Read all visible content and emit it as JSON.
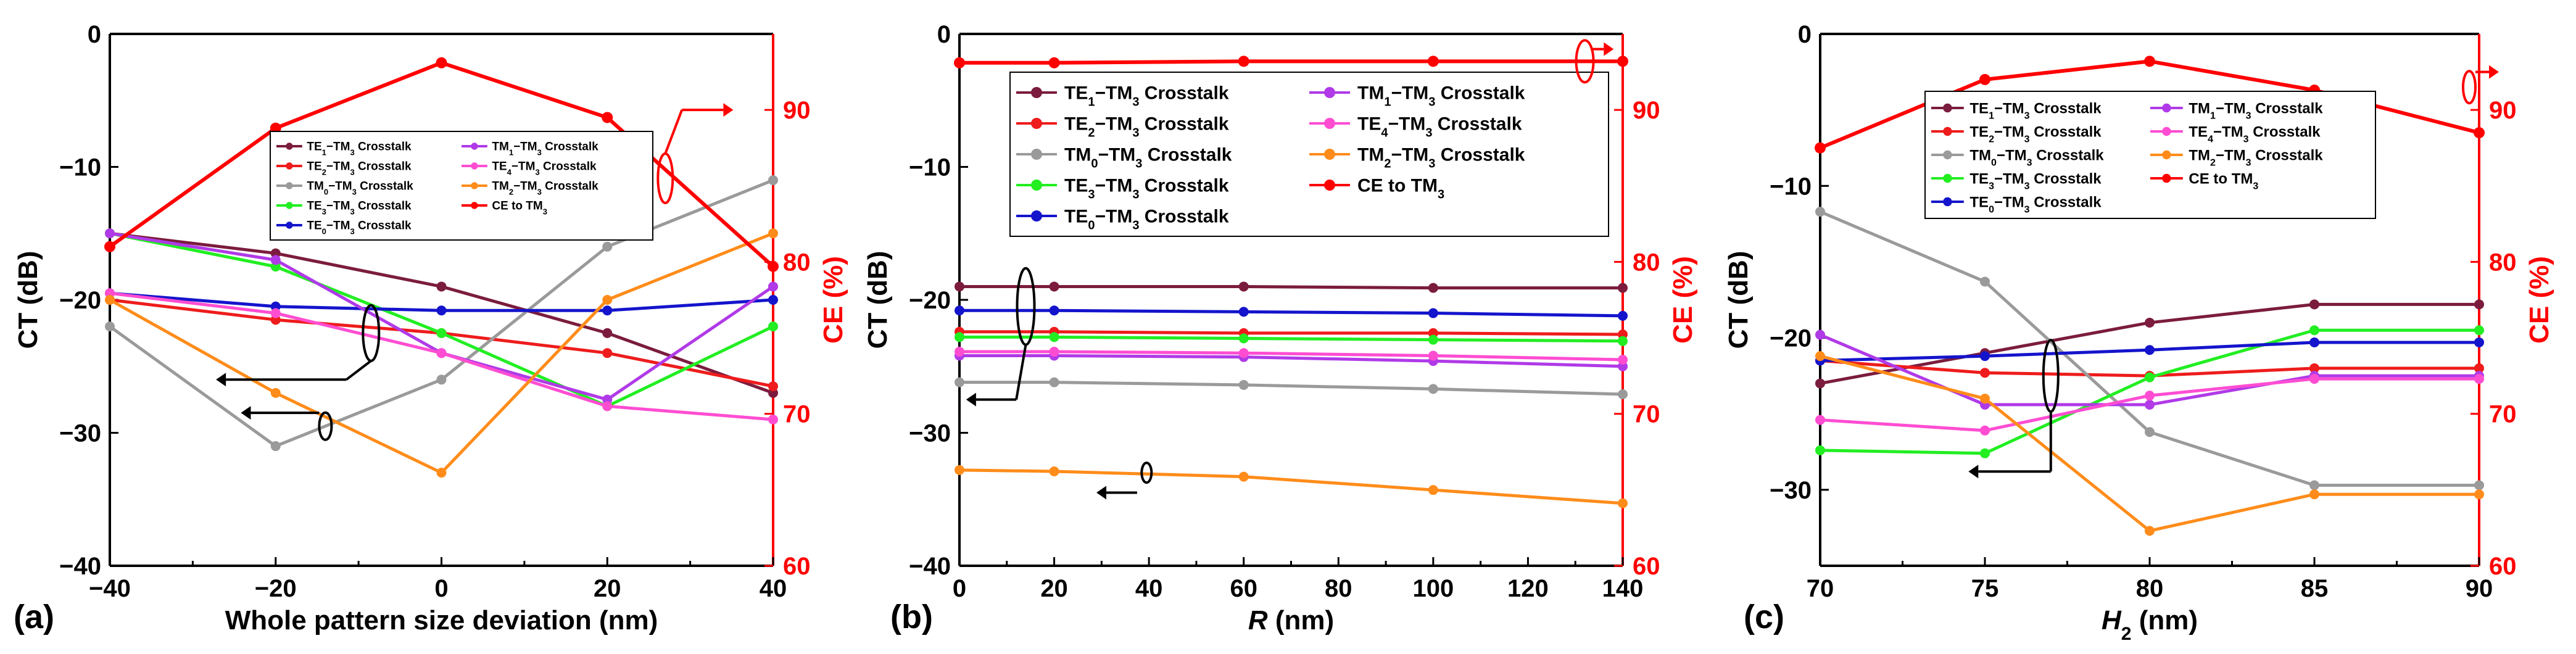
{
  "colors": {
    "TE1": "#7b1c3e",
    "TE2": "#ee1c1c",
    "TM0": "#9a9a9a",
    "TE3": "#22ee22",
    "TE0": "#1414cc",
    "TM1": "#b03ae8",
    "TE4": "#ff4dd2",
    "TM2": "#ff8c1a",
    "CE": "#ff0000"
  },
  "legend_labels": {
    "TE1": [
      "TE",
      "1",
      "−TM",
      "3",
      " Crosstalk"
    ],
    "TE2": [
      "TE",
      "2",
      "−TM",
      "3",
      " Crosstalk"
    ],
    "TM0": [
      "TM",
      "0",
      "−TM",
      "3",
      " Crosstalk"
    ],
    "TE3": [
      "TE",
      "3",
      "−TM",
      "3",
      " Crosstalk"
    ],
    "TE0": [
      "TE",
      "0",
      "−TM",
      "3",
      " Crosstalk"
    ],
    "TM1": [
      "TM",
      "1",
      "−TM",
      "3",
      " Crosstalk"
    ],
    "TE4": [
      "TE",
      "4",
      "−TM",
      "3",
      " Crosstalk"
    ],
    "TM2": [
      "TM",
      "2",
      "−TM",
      "3",
      " Crosstalk"
    ],
    "CE": [
      "CE to TM",
      "3",
      "",
      "",
      ""
    ]
  },
  "chart_data": [
    {
      "type": "line",
      "panel_label": "(a)",
      "xlabel": "Whole pattern size deviation (nm)",
      "x_italic": false,
      "ylabel": "CT (dB)",
      "y2label": "CE (%)",
      "xlim": [
        -40,
        40
      ],
      "xticks": [
        -40,
        -20,
        0,
        20,
        40
      ],
      "ylim": [
        -40,
        0
      ],
      "yticks": [
        -40,
        -30,
        -20,
        -10,
        0
      ],
      "y2lim": [
        60,
        95
      ],
      "y2ticks": [
        60,
        70,
        80,
        90
      ],
      "x": [
        -40,
        -20,
        0,
        20,
        40
      ],
      "series": [
        {
          "key": "TE1",
          "name": "TE1−TM3 Crosstalk",
          "axis": "left",
          "values": [
            -15,
            -16.5,
            -19,
            -22.5,
            -27
          ]
        },
        {
          "key": "TE2",
          "name": "TE2−TM3 Crosstalk",
          "axis": "left",
          "values": [
            -20,
            -21.5,
            -22.5,
            -24,
            -26.5
          ]
        },
        {
          "key": "TM0",
          "name": "TM0−TM3 Crosstalk",
          "axis": "left",
          "values": [
            -22,
            -31,
            -26,
            -16,
            -11
          ]
        },
        {
          "key": "TE3",
          "name": "TE3−TM3 Crosstalk",
          "axis": "left",
          "values": [
            -15,
            -17.5,
            -22.5,
            -28,
            -22
          ]
        },
        {
          "key": "TE0",
          "name": "TE0−TM3 Crosstalk",
          "axis": "left",
          "values": [
            -19.5,
            -20.5,
            -20.8,
            -20.8,
            -20
          ]
        },
        {
          "key": "TM1",
          "name": "TM1−TM3 Crosstalk",
          "axis": "left",
          "values": [
            -15,
            -17,
            -24,
            -27.5,
            -19
          ]
        },
        {
          "key": "TE4",
          "name": "TE4−TM3 Crosstalk",
          "axis": "left",
          "values": [
            -19.5,
            -21,
            -24,
            -28,
            -29
          ]
        },
        {
          "key": "TM2",
          "name": "TM2−TM3 Crosstalk",
          "axis": "left",
          "values": [
            -20,
            -27,
            -33,
            -20,
            -15
          ]
        },
        {
          "key": "CE",
          "name": "CE to TM3",
          "axis": "right",
          "values": [
            81,
            88.8,
            93.1,
            89.5,
            79.7
          ]
        }
      ],
      "legend": {
        "font": 19,
        "line_h": 32,
        "order": [
          [
            "TE1",
            "TM1"
          ],
          [
            "TE2",
            "TE4"
          ],
          [
            "TM0",
            "TM2"
          ],
          [
            "TE3",
            "CE"
          ],
          [
            "TE0",
            null
          ]
        ]
      }
    },
    {
      "type": "line",
      "panel_label": "(b)",
      "xlabel": "R (nm)",
      "x_italic": true,
      "ylabel": "CT (dB)",
      "y2label": "CE (%)",
      "xlim": [
        0,
        140
      ],
      "xticks": [
        0,
        20,
        40,
        60,
        80,
        100,
        120,
        140
      ],
      "ylim": [
        -40,
        0
      ],
      "yticks": [
        -40,
        -30,
        -20,
        -10,
        0
      ],
      "y2lim": [
        60,
        95
      ],
      "y2ticks": [
        60,
        70,
        80,
        90
      ],
      "x": [
        0,
        20,
        60,
        100,
        140
      ],
      "series": [
        {
          "key": "TE1",
          "name": "TE1−TM3 Crosstalk",
          "axis": "left",
          "values": [
            -19,
            -19,
            -19,
            -19.1,
            -19.1
          ]
        },
        {
          "key": "TE2",
          "name": "TE2−TM3 Crosstalk",
          "axis": "left",
          "values": [
            -22.4,
            -22.4,
            -22.5,
            -22.5,
            -22.6
          ]
        },
        {
          "key": "TM0",
          "name": "TM0−TM3 Crosstalk",
          "axis": "left",
          "values": [
            -26.2,
            -26.2,
            -26.4,
            -26.7,
            -27.1
          ]
        },
        {
          "key": "TE3",
          "name": "TE3−TM3 Crosstalk",
          "axis": "left",
          "values": [
            -22.8,
            -22.8,
            -22.9,
            -23,
            -23.1
          ]
        },
        {
          "key": "TE0",
          "name": "TE0−TM3 Crosstalk",
          "axis": "left",
          "values": [
            -20.8,
            -20.8,
            -20.9,
            -21,
            -21.2
          ]
        },
        {
          "key": "TM1",
          "name": "TM1−TM3 Crosstalk",
          "axis": "left",
          "values": [
            -24.2,
            -24.2,
            -24.3,
            -24.6,
            -25
          ]
        },
        {
          "key": "TE4",
          "name": "TE4−TM3 Crosstalk",
          "axis": "left",
          "values": [
            -23.9,
            -23.9,
            -24,
            -24.2,
            -24.5
          ]
        },
        {
          "key": "TM2",
          "name": "TM2−TM3 Crosstalk",
          "axis": "left",
          "values": [
            -32.8,
            -32.9,
            -33.3,
            -34.3,
            -35.3
          ]
        },
        {
          "key": "CE",
          "name": "CE to TM3",
          "axis": "right",
          "values": [
            93.1,
            93.1,
            93.2,
            93.2,
            93.2
          ]
        }
      ],
      "legend": {
        "font": 30,
        "line_h": 50,
        "order": [
          [
            "TE1",
            "TM1"
          ],
          [
            "TE2",
            "TE4"
          ],
          [
            "TM0",
            "TM2"
          ],
          [
            "TE3",
            "CE"
          ],
          [
            "TE0",
            null
          ]
        ]
      }
    },
    {
      "type": "line",
      "panel_label": "(c)",
      "xlabel": "H2 (nm)",
      "x_italic": true,
      "x_sub": "2",
      "ylabel": "CT (dB)",
      "y2label": "CE (%)",
      "xlim": [
        70,
        90
      ],
      "xticks": [
        70,
        75,
        80,
        85,
        90
      ],
      "ylim": [
        -35,
        0
      ],
      "yticks": [
        -30,
        -20,
        -10,
        0
      ],
      "y2lim": [
        60,
        95
      ],
      "y2ticks": [
        60,
        70,
        80,
        90
      ],
      "x": [
        70,
        75,
        80,
        85,
        90
      ],
      "series": [
        {
          "key": "TE1",
          "name": "TE1−TM3 Crosstalk",
          "axis": "left",
          "values": [
            -23,
            -21,
            -19,
            -17.8,
            -17.8
          ]
        },
        {
          "key": "TE2",
          "name": "TE2−TM3 Crosstalk",
          "axis": "left",
          "values": [
            -21.5,
            -22.3,
            -22.5,
            -22,
            -22
          ]
        },
        {
          "key": "TM0",
          "name": "TM0−TM3 Crosstalk",
          "axis": "left",
          "values": [
            -11.7,
            -16.3,
            -26.2,
            -29.7,
            -29.7
          ]
        },
        {
          "key": "TE3",
          "name": "TE3−TM3 Crosstalk",
          "axis": "left",
          "values": [
            -27.4,
            -27.6,
            -22.6,
            -19.5,
            -19.5
          ]
        },
        {
          "key": "TE0",
          "name": "TE0−TM3 Crosstalk",
          "axis": "left",
          "values": [
            -21.5,
            -21.2,
            -20.8,
            -20.3,
            -20.3
          ]
        },
        {
          "key": "TM1",
          "name": "TM1−TM3 Crosstalk",
          "axis": "left",
          "values": [
            -19.8,
            -24.4,
            -24.4,
            -22.5,
            -22.5
          ]
        },
        {
          "key": "TE4",
          "name": "TE4−TM3 Crosstalk",
          "axis": "left",
          "values": [
            -25.4,
            -26.1,
            -23.8,
            -22.7,
            -22.7
          ]
        },
        {
          "key": "TM2",
          "name": "TM2−TM3 Crosstalk",
          "axis": "left",
          "values": [
            -21.2,
            -24,
            -32.7,
            -30.3,
            -30.3
          ]
        },
        {
          "key": "CE",
          "name": "CE to TM3",
          "axis": "right",
          "values": [
            87.5,
            92,
            93.2,
            91.3,
            88.5
          ]
        }
      ],
      "legend": {
        "font": 24,
        "line_h": 38,
        "order": [
          [
            "TE1",
            "TM1"
          ],
          [
            "TE2",
            "TE4"
          ],
          [
            "TM0",
            "TM2"
          ],
          [
            "TE3",
            "CE"
          ],
          [
            "TE0",
            null
          ]
        ]
      }
    }
  ]
}
